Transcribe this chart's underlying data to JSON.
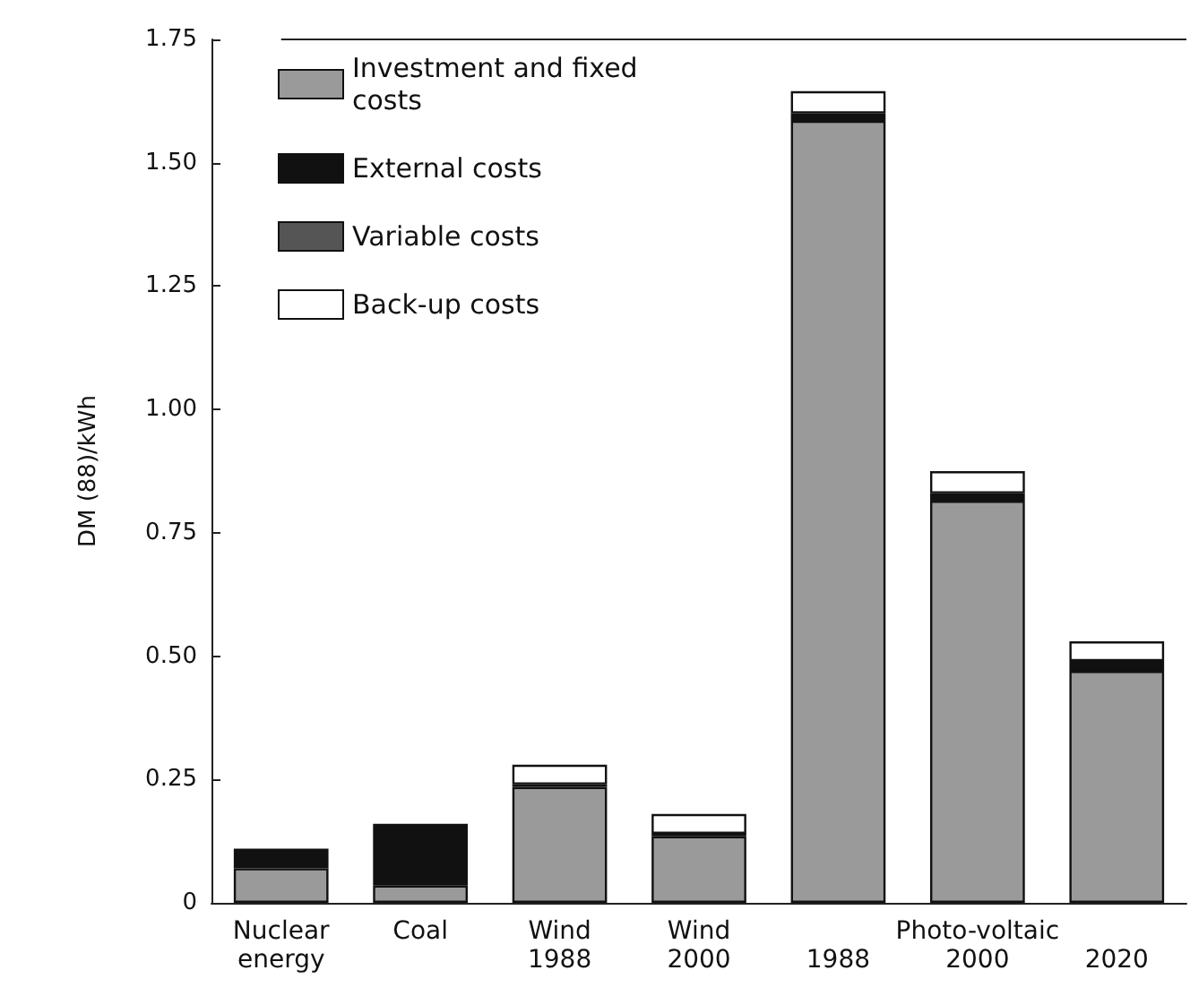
{
  "chart_data": {
    "type": "bar",
    "stacked": true,
    "ylabel": "DM (88)/kWh",
    "categories": [
      "Nuclear\nenergy",
      "Coal",
      "Wind\n1988",
      "Wind\n2000",
      "1988",
      "2000",
      "2020"
    ],
    "series": [
      {
        "name": "Investment and fixed\ncosts",
        "color": "#9a9a9a",
        "values": [
          0.07,
          0.035,
          0.235,
          0.135,
          1.585,
          0.815,
          0.47
        ]
      },
      {
        "name": "External costs",
        "color": "#111111",
        "values": [
          0.04,
          0.125,
          0.005,
          0.005,
          0.015,
          0.015,
          0.02
        ]
      },
      {
        "name": "Variable costs",
        "color": "#555555",
        "values": [
          null,
          null,
          null,
          null,
          null,
          null,
          null
        ]
      },
      {
        "name": "Back-up costs",
        "color": "#ffffff",
        "values": [
          null,
          null,
          0.04,
          0.04,
          0.045,
          0.045,
          0.04
        ]
      }
    ],
    "ylim": [
      0,
      1.75
    ],
    "yticks": [
      0,
      0.25,
      {
        "value": 0.5,
        "label": "0.50"
      },
      0.75,
      {
        "value": 1,
        "label": "1.00"
      },
      1.25,
      {
        "value": 1.5,
        "label": "1.50"
      },
      1.75
    ],
    "annotations": [
      "Photo-voltaic"
    ],
    "legend": "top left",
    "grid": false
  }
}
